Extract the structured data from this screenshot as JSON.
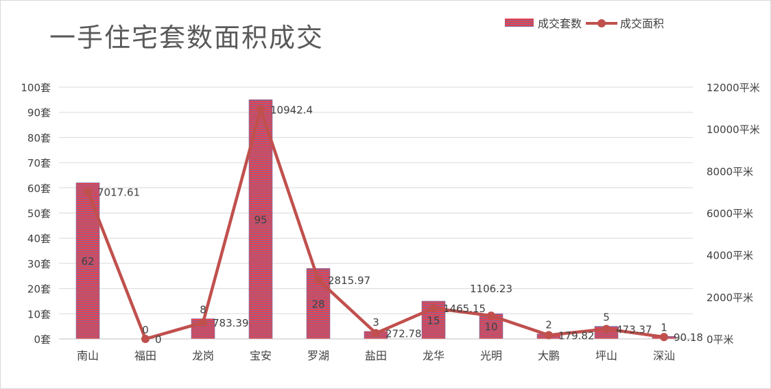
{
  "title": "一手住宅套数面积成交",
  "legend": {
    "bar_label": "成交套数",
    "line_label": "成交面积"
  },
  "chart_data": {
    "type": "bar",
    "combo_with": "line",
    "categories": [
      "南山",
      "福田",
      "龙岗",
      "宝安",
      "罗湖",
      "盐田",
      "龙华",
      "光明",
      "大鹏",
      "坪山",
      "深汕"
    ],
    "series": [
      {
        "name": "成交套数",
        "type": "bar",
        "axis": "left",
        "values": [
          62,
          0,
          8,
          95,
          28,
          3,
          15,
          10,
          2,
          5,
          1
        ],
        "labels": [
          "62",
          "0",
          "8",
          "95",
          "28",
          "3",
          "15",
          "10",
          "2",
          "5",
          "1"
        ]
      },
      {
        "name": "成交面积",
        "type": "line",
        "axis": "right",
        "values": [
          7017.61,
          0,
          783.39,
          10942.4,
          2815.97,
          272.78,
          1465.15,
          1106.23,
          179.82,
          473.37,
          90.18
        ],
        "labels": [
          "7017.61",
          "0",
          "783.39",
          "10942.4",
          "2815.97",
          "272.78",
          "1465.15",
          "1106.23",
          "179.82",
          "473.37",
          "90.18"
        ]
      }
    ],
    "y_left": {
      "min": 0,
      "max": 100,
      "step": 10,
      "ticks": [
        "0套",
        "10套",
        "20套",
        "30套",
        "40套",
        "50套",
        "60套",
        "70套",
        "80套",
        "90套",
        "100套"
      ]
    },
    "y_right": {
      "min": 0,
      "max": 12000,
      "step": 2000,
      "ticks": [
        "0平米",
        "2000平米",
        "4000平米",
        "6000平米",
        "8000平米",
        "10000平米",
        "12000平米"
      ]
    },
    "grid": true,
    "legend_position": "top-right",
    "colors": {
      "bar": "#e8424d",
      "bar_stripe": "#7a6aa0",
      "line": "#c0504d",
      "grid": "#d9d9d9",
      "text": "#404040"
    }
  }
}
